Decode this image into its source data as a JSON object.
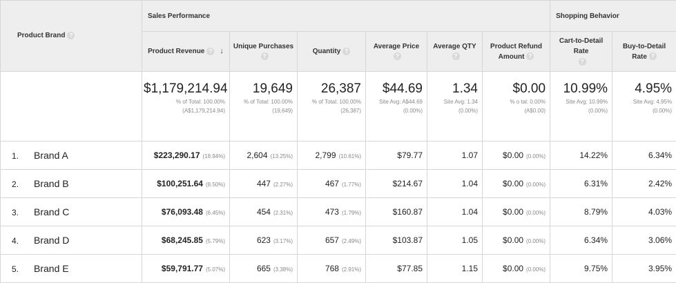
{
  "headers": {
    "product_brand": "Product Brand",
    "sales_performance": "Sales Performance",
    "shopping_behavior": "Shopping Behavior",
    "product_revenue": "Product Revenue",
    "unique_purchases": "Unique Purchases",
    "quantity": "Quantity",
    "average_price": "Average Price",
    "average_qty": "Average QTY",
    "product_refund_amount_l1": "Product Refund",
    "product_refund_amount_l2": "Amount",
    "cart_to_detail": "Cart-to-Detail Rate",
    "buy_to_detail_l1": "Buy-to-Detail",
    "buy_to_detail_l2": "Rate",
    "sort_arrow": "↓"
  },
  "totals": {
    "revenue": "$1,179,214.94",
    "revenue_sub1": "% of Total: 100.00%",
    "revenue_sub2": "(A$1,179,214.94)",
    "unique": "19,649",
    "unique_sub1": "% of Total: 100.00%",
    "unique_sub2": "(19,649)",
    "quantity": "26,387",
    "quantity_sub1": "% of Total: 100.00%",
    "quantity_sub2": "(26,387)",
    "avg_price": "$44.69",
    "avg_price_sub1": "Site Avg: A$44.69",
    "avg_price_sub2": "(0.00%)",
    "avg_qty": "1.34",
    "avg_qty_sub1": "Site Avg: 1.34",
    "avg_qty_sub2": "(0.00%)",
    "refund": "$0.00",
    "refund_sub1": "% o    tal: 0.00%",
    "refund_sub2": "(A$0.00)",
    "cart": "10.99%",
    "cart_sub1": "Site Avg: 10.99%",
    "cart_sub2": "(0.00%)",
    "buy": "4.95%",
    "buy_sub1": "Site Avg: 4.95%",
    "buy_sub2": "(0.00%)"
  },
  "rows": [
    {
      "rank": "1.",
      "brand": "Brand A",
      "revenue": "$223,290.17",
      "revenue_pct": "(18.94%)",
      "unique": "2,604",
      "unique_pct": "(13.25%)",
      "quantity": "2,799",
      "quantity_pct": "(10.61%)",
      "avg_price": "$79.77",
      "avg_qty": "1.07",
      "refund": "$0.00",
      "refund_pct": "(0.00%)",
      "cart": "14.22%",
      "buy": "6.34%"
    },
    {
      "rank": "2.",
      "brand": "Brand B",
      "revenue": "$100,251.64",
      "revenue_pct": "(8.50%)",
      "unique": "447",
      "unique_pct": "(2.27%)",
      "quantity": "467",
      "quantity_pct": "(1.77%)",
      "avg_price": "$214.67",
      "avg_qty": "1.04",
      "refund": "$0.00",
      "refund_pct": "(0.00%)",
      "cart": "6.31%",
      "buy": "2.42%"
    },
    {
      "rank": "3.",
      "brand": "Brand C",
      "revenue": "$76,093.48",
      "revenue_pct": "(6.45%)",
      "unique": "454",
      "unique_pct": "(2.31%)",
      "quantity": "473",
      "quantity_pct": "(1.79%)",
      "avg_price": "$160.87",
      "avg_qty": "1.04",
      "refund": "$0.00",
      "refund_pct": "(0.00%)",
      "cart": "8.79%",
      "buy": "4.03%"
    },
    {
      "rank": "4.",
      "brand": "Brand D",
      "revenue": "$68,245.85",
      "revenue_pct": "(5.79%)",
      "unique": "623",
      "unique_pct": "(3.17%)",
      "quantity": "657",
      "quantity_pct": "(2.49%)",
      "avg_price": "$103.87",
      "avg_qty": "1.05",
      "refund": "$0.00",
      "refund_pct": "(0.00%)",
      "cart": "6.34%",
      "buy": "3.06%"
    },
    {
      "rank": "5.",
      "brand": "Brand E",
      "revenue": "$59,791.77",
      "revenue_pct": "(5.07%)",
      "unique": "665",
      "unique_pct": "(3.38%)",
      "quantity": "768",
      "quantity_pct": "(2.91%)",
      "avg_price": "$77.85",
      "avg_qty": "1.15",
      "refund": "$0.00",
      "refund_pct": "(0.00%)",
      "cart": "9.75%",
      "buy": "3.95%"
    }
  ]
}
